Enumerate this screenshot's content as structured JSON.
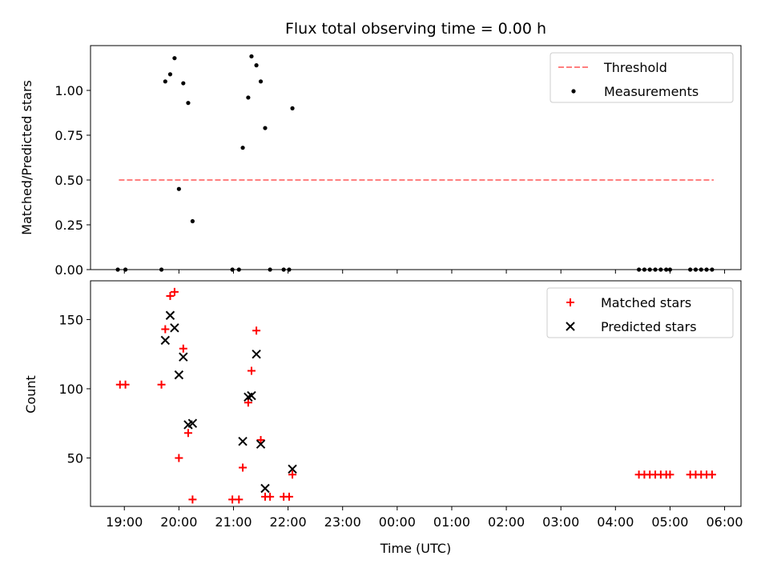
{
  "chart_data": [
    {
      "type": "scatter",
      "title": "Flux total observing time = 0.00 h",
      "xlabel": "",
      "ylabel": "Matched/Predicted stars",
      "xlim": [
        18.38,
        30.3
      ],
      "ylim": [
        0,
        1.25
      ],
      "yticks": [
        0.0,
        0.25,
        0.5,
        0.75,
        1.0
      ],
      "ytick_labels": [
        "0.00",
        "0.25",
        "0.50",
        "0.75",
        "1.00"
      ],
      "legend": {
        "placement": "top-right",
        "entries": [
          "Threshold",
          "Measurements"
        ]
      },
      "threshold": {
        "name": "Threshold",
        "value": 0.5,
        "x": [
          18.9,
          29.8
        ],
        "color": "#ff7f7f",
        "style": "dashed"
      },
      "series": [
        {
          "name": "Measurements",
          "marker": "dot",
          "color": "#000000",
          "points": [
            [
              18.88,
              0.0
            ],
            [
              19.02,
              0.0
            ],
            [
              19.68,
              0.0
            ],
            [
              19.75,
              1.05
            ],
            [
              19.84,
              1.09
            ],
            [
              19.92,
              1.18
            ],
            [
              20.0,
              0.45
            ],
            [
              20.08,
              1.04
            ],
            [
              20.17,
              0.93
            ],
            [
              20.25,
              0.27
            ],
            [
              20.98,
              0.0
            ],
            [
              21.1,
              0.0
            ],
            [
              21.17,
              0.68
            ],
            [
              21.27,
              0.96
            ],
            [
              21.33,
              1.19
            ],
            [
              21.42,
              1.14
            ],
            [
              21.5,
              1.05
            ],
            [
              21.58,
              0.79
            ],
            [
              21.67,
              0.0
            ],
            [
              21.92,
              0.0
            ],
            [
              22.02,
              0.0
            ],
            [
              22.08,
              0.9
            ],
            [
              28.43,
              0.0
            ],
            [
              28.53,
              0.0
            ],
            [
              28.63,
              0.0
            ],
            [
              28.73,
              0.0
            ],
            [
              28.83,
              0.0
            ],
            [
              28.93,
              0.0
            ],
            [
              29.0,
              0.0
            ],
            [
              29.37,
              0.0
            ],
            [
              29.47,
              0.0
            ],
            [
              29.57,
              0.0
            ],
            [
              29.67,
              0.0
            ],
            [
              29.77,
              0.0
            ]
          ]
        }
      ]
    },
    {
      "type": "scatter",
      "title": "",
      "xlabel": "Time (UTC)",
      "ylabel": "Count",
      "xlim": [
        18.38,
        30.3
      ],
      "ylim": [
        15,
        178
      ],
      "yticks": [
        50,
        100,
        150
      ],
      "ytick_labels": [
        "50",
        "100",
        "150"
      ],
      "xticks": [
        19,
        20,
        21,
        22,
        23,
        24,
        25,
        26,
        27,
        28,
        29,
        30
      ],
      "xtick_labels": [
        "19:00",
        "20:00",
        "21:00",
        "22:00",
        "23:00",
        "00:00",
        "01:00",
        "02:00",
        "03:00",
        "04:00",
        "05:00",
        "06:00"
      ],
      "legend": {
        "placement": "top-right",
        "entries": [
          "Matched stars",
          "Predicted stars"
        ]
      },
      "series": [
        {
          "name": "Matched stars",
          "marker": "plus",
          "color": "#ff0000",
          "points": [
            [
              18.92,
              103
            ],
            [
              19.02,
              103
            ],
            [
              19.68,
              103
            ],
            [
              19.75,
              143
            ],
            [
              19.84,
              167
            ],
            [
              19.92,
              170
            ],
            [
              20.0,
              50
            ],
            [
              20.08,
              129
            ],
            [
              20.17,
              68
            ],
            [
              20.25,
              20
            ],
            [
              20.98,
              20
            ],
            [
              21.1,
              20
            ],
            [
              21.17,
              43
            ],
            [
              21.27,
              90
            ],
            [
              21.33,
              113
            ],
            [
              21.42,
              142
            ],
            [
              21.5,
              63
            ],
            [
              21.58,
              22
            ],
            [
              21.67,
              22
            ],
            [
              21.92,
              22
            ],
            [
              22.02,
              22
            ],
            [
              22.08,
              38
            ],
            [
              28.43,
              38
            ],
            [
              28.53,
              38
            ],
            [
              28.63,
              38
            ],
            [
              28.73,
              38
            ],
            [
              28.83,
              38
            ],
            [
              28.93,
              38
            ],
            [
              29.0,
              38
            ],
            [
              29.37,
              38
            ],
            [
              29.47,
              38
            ],
            [
              29.57,
              38
            ],
            [
              29.67,
              38
            ],
            [
              29.77,
              38
            ]
          ]
        },
        {
          "name": "Predicted stars",
          "marker": "x",
          "color": "#000000",
          "points": [
            [
              19.75,
              135
            ],
            [
              19.84,
              153
            ],
            [
              19.92,
              144
            ],
            [
              20.0,
              110
            ],
            [
              20.08,
              123
            ],
            [
              20.17,
              74
            ],
            [
              20.25,
              75
            ],
            [
              21.17,
              62
            ],
            [
              21.27,
              94
            ],
            [
              21.33,
              95
            ],
            [
              21.42,
              125
            ],
            [
              21.5,
              60
            ],
            [
              21.58,
              28
            ],
            [
              22.08,
              42
            ]
          ]
        }
      ]
    }
  ]
}
